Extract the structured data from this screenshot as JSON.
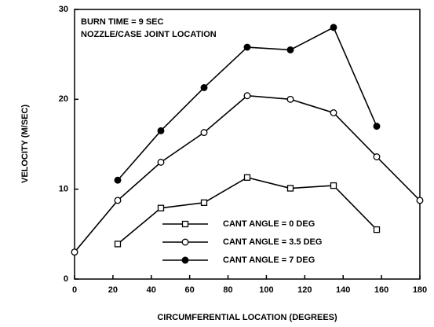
{
  "chart_data": {
    "type": "line",
    "annotations": [
      "BURN TIME = 9 SEC",
      "NOZZLE/CASE JOINT LOCATION"
    ],
    "x_label": "CIRCUMFERENTIAL LOCATION (DEGREES)",
    "y_label": "VELOCITY  (M/SEC)",
    "xlim": [
      0,
      180
    ],
    "xticks": [
      0,
      20,
      40,
      60,
      80,
      100,
      120,
      140,
      160,
      180
    ],
    "ylim": [
      0,
      30
    ],
    "yticks": [
      0,
      10,
      20,
      30
    ],
    "series": [
      {
        "name": "CANT ANGLE = 0 DEG",
        "color": "#000000",
        "marker": "square-open",
        "x": [
          22.5,
          45,
          67.5,
          90,
          112.5,
          135,
          157.5
        ],
        "values": [
          3.9,
          7.9,
          8.5,
          11.3,
          10.1,
          10.4,
          5.5
        ]
      },
      {
        "name": "CANT ANGLE = 3.5 DEG",
        "color": "#000000",
        "marker": "circle-open",
        "x": [
          0,
          22.5,
          45,
          67.5,
          90,
          112.5,
          135,
          157.5,
          180
        ],
        "values": [
          3.0,
          8.75,
          13.0,
          16.3,
          20.4,
          20.0,
          18.5,
          13.6,
          8.75
        ]
      },
      {
        "name": "CANT ANGLE = 7 DEG",
        "color": "#000000",
        "marker": "circle-filled",
        "x": [
          22.5,
          45,
          67.5,
          90,
          112.5,
          135,
          157.5
        ],
        "values": [
          11.0,
          16.5,
          21.3,
          25.8,
          25.5,
          28.0,
          17.0
        ]
      }
    ]
  }
}
